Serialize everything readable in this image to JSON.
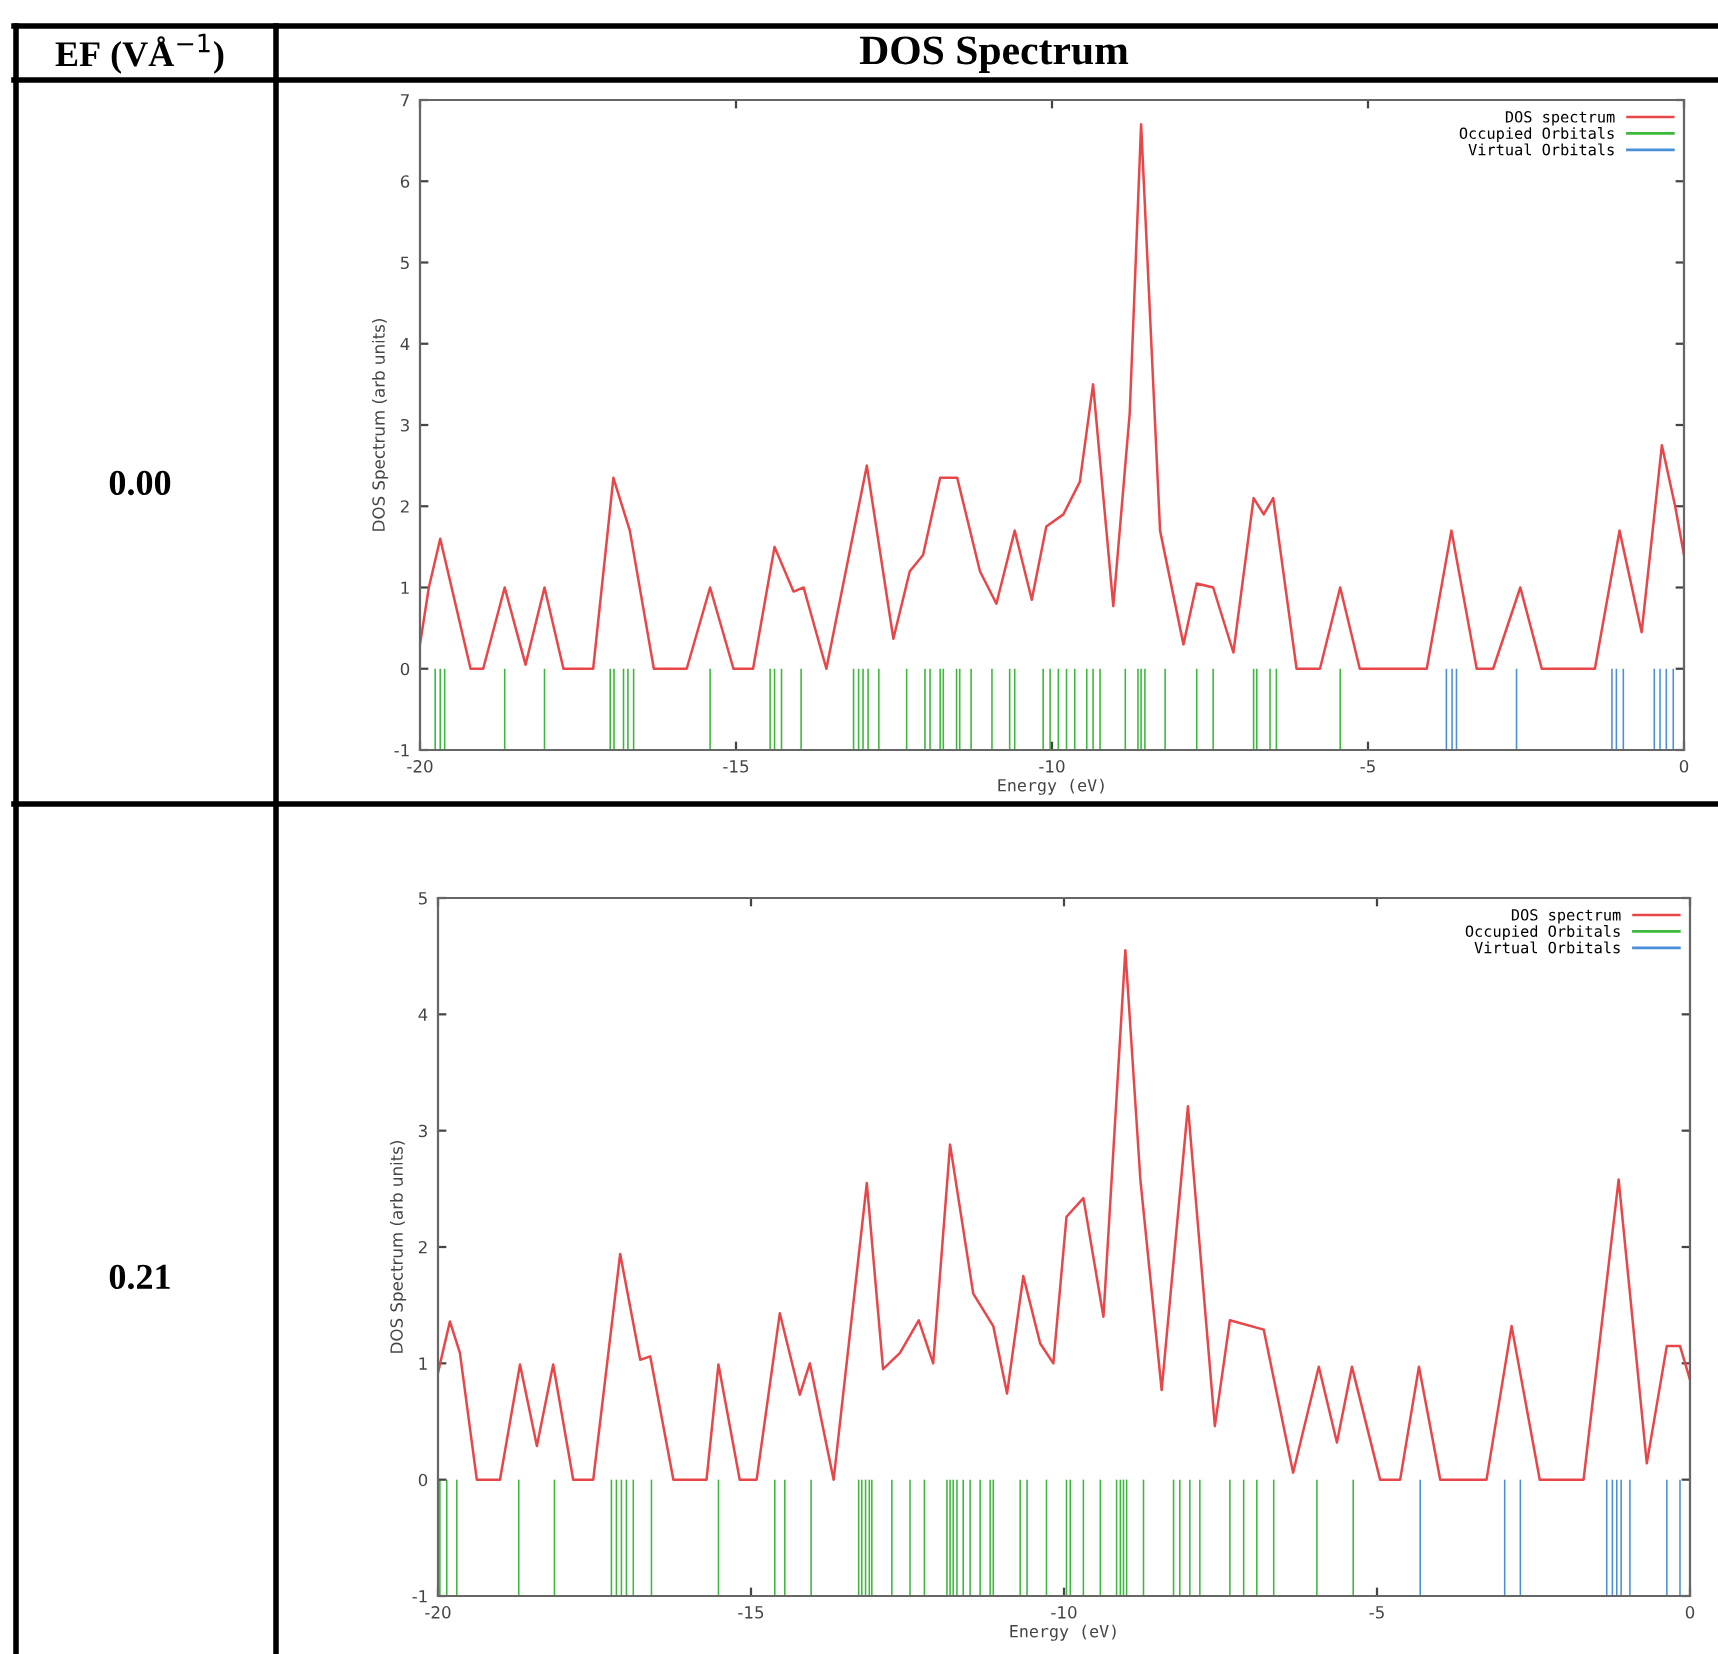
{
  "chart_data": [
    {
      "type": "line",
      "xlabel": "Energy (eV)",
      "ylabel": "DOS Spectrum (arb units)",
      "xlim": [
        -20,
        0
      ],
      "ylim": [
        -1,
        7
      ],
      "xticks": [
        -20,
        -15,
        -10,
        -5,
        0
      ],
      "yticks": [
        -1,
        0,
        1,
        2,
        3,
        4,
        5,
        6,
        7
      ],
      "legend": "top right",
      "grid": false,
      "annotations": [
        "EF (VÅ$^{−1}$)",
        "DOS Spectrum",
        "0.00"
      ],
      "series": [
        {
          "name": "DOS spectrum",
          "color": "#e8474a",
          "x": [
            -20,
            -19.86,
            -19.68,
            -19.5,
            -19.2,
            -19,
            -18.66,
            -18.33,
            -18.03,
            -17.73,
            -17.26,
            -16.94,
            -16.68,
            -16.3,
            -15.78,
            -15.41,
            -15.04,
            -14.73,
            -14.39,
            -14.09,
            -13.93,
            -13.57,
            -12.93,
            -12.51,
            -12.25,
            -12.04,
            -11.77,
            -11.5,
            -11.14,
            -10.88,
            -10.59,
            -10.32,
            -10.09,
            -9.82,
            -9.56,
            -9.35,
            -9.03,
            -8.77,
            -8.59,
            -8.29,
            -7.92,
            -7.71,
            -7.45,
            -7.13,
            -6.81,
            -6.65,
            -6.5,
            -6.13,
            -5.76,
            -5.44,
            -5.13,
            -4.07,
            -3.68,
            -3.28,
            -3.02,
            -2.59,
            -2.25,
            -1.41,
            -1.02,
            -0.67,
            -0.35,
            -0.14,
            0
          ],
          "values": [
            0.3,
            1.0,
            1.6,
            1.0,
            0,
            0,
            1.0,
            0.05,
            1.0,
            0,
            0,
            2.35,
            1.7,
            0,
            0,
            1.0,
            0,
            0,
            1.5,
            0.95,
            1.0,
            0,
            2.5,
            0.37,
            1.2,
            1.4,
            2.35,
            2.35,
            1.2,
            0.8,
            1.7,
            0.85,
            1.75,
            1.9,
            2.3,
            3.5,
            0.77,
            3.15,
            6.7,
            1.7,
            0.3,
            1.05,
            1.0,
            0.2,
            2.1,
            1.9,
            2.1,
            0,
            0,
            1.0,
            0,
            0,
            1.7,
            0,
            0,
            1.0,
            0,
            0,
            1.7,
            0.45,
            2.75,
            2.0,
            1.4
          ]
        },
        {
          "name": "Occupied Orbitals",
          "type": "bar",
          "color": "#3cb93c",
          "x": [
            -19.76,
            -19.68,
            -19.61,
            -18.66,
            -18.03,
            -16.99,
            -16.93,
            -16.78,
            -16.71,
            -16.62,
            -15.41,
            -14.46,
            -14.39,
            -14.28,
            -13.97,
            -13.14,
            -13.06,
            -12.99,
            -12.91,
            -12.74,
            -12.3,
            -12.01,
            -11.93,
            -11.77,
            -11.72,
            -11.51,
            -11.46,
            -11.28,
            -10.95,
            -10.67,
            -10.59,
            -10.14,
            -10.03,
            -9.9,
            -9.77,
            -9.64,
            -9.45,
            -9.35,
            -9.24,
            -8.84,
            -8.64,
            -8.59,
            -8.53,
            -8.21,
            -7.71,
            -7.45,
            -6.81,
            -6.76,
            -6.55,
            -6.45,
            -5.44
          ],
          "values": [
            1,
            1,
            1,
            1,
            1,
            1,
            1,
            1,
            1,
            1,
            1,
            1,
            1,
            1,
            1,
            1,
            1,
            1,
            1,
            1,
            1,
            1,
            1,
            1,
            1,
            1,
            1,
            1,
            1,
            1,
            1,
            1,
            1,
            1,
            1,
            1,
            1,
            1,
            1,
            1,
            1,
            1,
            1,
            1,
            1,
            1,
            1,
            1,
            1,
            1,
            1
          ],
          "base": [
            -1,
            -1,
            -1,
            -1,
            -1,
            -1,
            -1,
            -1,
            -1,
            -1,
            -1,
            -1,
            -1,
            -1,
            -1,
            -1,
            -1,
            -1,
            -1,
            -1,
            -1,
            -1,
            -1,
            -1,
            -1,
            -1,
            -1,
            -1,
            -1,
            -1,
            -1,
            -1,
            -1,
            -1,
            -1,
            -1,
            -1,
            -1,
            -1,
            -1,
            -1,
            -1,
            -1,
            -1,
            -1,
            -1,
            -1,
            -1,
            -1,
            -1,
            -1
          ]
        },
        {
          "name": "Virtual Orbitals",
          "type": "bar",
          "color": "#4a90d9",
          "x": [
            -3.76,
            -3.67,
            -3.6,
            -2.65,
            -1.14,
            -1.07,
            -0.96,
            -0.47,
            -0.38,
            -0.28,
            -0.17
          ],
          "values": [
            1,
            1,
            1,
            1,
            1,
            1,
            1,
            1,
            1,
            1,
            1
          ],
          "base": [
            -1,
            -1,
            -1,
            -1,
            -1,
            -1,
            -1,
            -1,
            -1,
            -1,
            -1
          ]
        }
      ]
    },
    {
      "type": "line",
      "xlabel": "Energy (eV)",
      "ylabel": "DOS Spectrum (arb units)",
      "xlim": [
        -20,
        0
      ],
      "ylim": [
        -1,
        5
      ],
      "xticks": [
        -20,
        -15,
        -10,
        -5,
        0
      ],
      "yticks": [
        -1,
        0,
        1,
        2,
        3,
        4,
        5
      ],
      "legend": "top right",
      "grid": false,
      "annotations": [
        "0.21"
      ],
      "series": [
        {
          "name": "DOS spectrum",
          "color": "#e8474a",
          "x": [
            -20,
            -19.81,
            -19.65,
            -19.38,
            -19.01,
            -18.69,
            -18.42,
            -18.16,
            -17.84,
            -17.52,
            -17.09,
            -16.77,
            -16.61,
            -16.24,
            -15.71,
            -15.52,
            -15.18,
            -14.91,
            -14.54,
            -14.22,
            -14.06,
            -13.68,
            -13.15,
            -12.89,
            -12.62,
            -12.32,
            -12.09,
            -11.82,
            -11.45,
            -11.13,
            -10.91,
            -10.65,
            -10.38,
            -10.17,
            -9.96,
            -9.69,
            -9.37,
            -9.02,
            -8.78,
            -8.44,
            -8.02,
            -7.59,
            -7.35,
            -6.81,
            -6.34,
            -5.93,
            -5.64,
            -5.4,
            -4.95,
            -4.63,
            -4.33,
            -3.99,
            -3.25,
            -2.85,
            -2.4,
            -1.7,
            -1.14,
            -0.69,
            -0.37,
            -0.16,
            0
          ],
          "values": [
            0.92,
            1.36,
            1.09,
            0,
            0,
            0.99,
            0.29,
            0.99,
            0,
            0,
            1.94,
            1.03,
            1.06,
            0,
            0,
            0.99,
            0,
            0,
            1.43,
            0.73,
            1.0,
            0,
            2.55,
            0.95,
            1.09,
            1.37,
            1.0,
            2.88,
            1.6,
            1.32,
            0.74,
            1.75,
            1.17,
            1.0,
            2.26,
            2.42,
            1.4,
            4.55,
            2.58,
            0.77,
            3.21,
            0.46,
            1.37,
            1.29,
            0.06,
            0.97,
            0.32,
            0.97,
            0,
            0,
            0.97,
            0,
            0,
            1.32,
            0,
            0,
            2.58,
            0.14,
            1.15,
            1.15,
            0.86
          ]
        },
        {
          "name": "Occupied Orbitals",
          "type": "bar",
          "color": "#3cb93c",
          "x": [
            -19.97,
            -19.86,
            -19.7,
            -18.71,
            -18.14,
            -17.23,
            -17.15,
            -17.07,
            -16.99,
            -16.88,
            -16.59,
            -15.52,
            -14.62,
            -14.46,
            -14.04,
            -13.28,
            -13.23,
            -13.17,
            -13.11,
            -13.07,
            -12.75,
            -12.46,
            -12.23,
            -11.87,
            -11.82,
            -11.77,
            -11.71,
            -11.61,
            -11.5,
            -11.34,
            -11.18,
            -11.13,
            -10.7,
            -10.59,
            -10.28,
            -9.96,
            -9.9,
            -9.69,
            -9.42,
            -9.16,
            -9.1,
            -9.05,
            -9.0,
            -8.73,
            -8.25,
            -8.15,
            -7.99,
            -7.83,
            -7.35,
            -7.13,
            -6.92,
            -6.65,
            -5.96,
            -5.38
          ],
          "values": [
            1,
            1,
            1,
            1,
            1,
            1,
            1,
            1,
            1,
            1,
            1,
            1,
            1,
            1,
            1,
            1,
            1,
            1,
            1,
            1,
            1,
            1,
            1,
            1,
            1,
            1,
            1,
            1,
            1,
            1,
            1,
            1,
            1,
            1,
            1,
            1,
            1,
            1,
            1,
            1,
            1,
            1,
            1,
            1,
            1,
            1,
            1,
            1,
            1,
            1,
            1,
            1,
            1,
            1
          ],
          "base": [
            -1,
            -1,
            -1,
            -1,
            -1,
            -1,
            -1,
            -1,
            -1,
            -1,
            -1,
            -1,
            -1,
            -1,
            -1,
            -1,
            -1,
            -1,
            -1,
            -1,
            -1,
            -1,
            -1,
            -1,
            -1,
            -1,
            -1,
            -1,
            -1,
            -1,
            -1,
            -1,
            -1,
            -1,
            -1,
            -1,
            -1,
            -1,
            -1,
            -1,
            -1,
            -1,
            -1,
            -1,
            -1,
            -1,
            -1,
            -1,
            -1,
            -1,
            -1,
            -1,
            -1,
            -1
          ]
        },
        {
          "name": "Virtual Orbitals",
          "type": "bar",
          "color": "#4a90d9",
          "x": [
            -4.31,
            -2.96,
            -2.71,
            -1.33,
            -1.24,
            -1.17,
            -1.1,
            -0.96,
            -0.37,
            -0.16
          ],
          "values": [
            1,
            1,
            1,
            1,
            1,
            1,
            1,
            1,
            1,
            1
          ],
          "base": [
            -1,
            -1,
            -1,
            -1,
            -1,
            -1,
            -1,
            -1,
            -1,
            -1
          ]
        }
      ]
    }
  ]
}
